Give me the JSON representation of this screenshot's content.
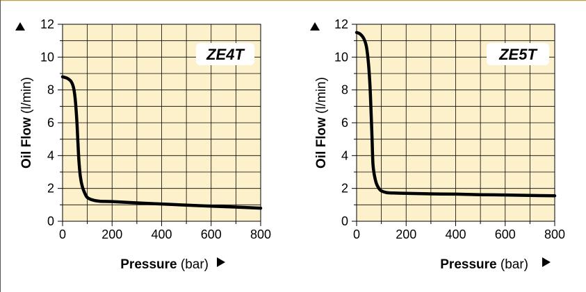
{
  "charts": [
    {
      "badge": "ZE4T",
      "ylabel_bold": "Oil Flow",
      "ylabel_unit": " (l/min)",
      "xlabel_bold": "Pressure",
      "xlabel_unit": " (bar)",
      "yticks": [
        "0",
        "2",
        "4",
        "6",
        "8",
        "10",
        "12"
      ],
      "xticks": [
        "0",
        "200",
        "400",
        "600",
        "800"
      ]
    },
    {
      "badge": "ZE5T",
      "ylabel_bold": "Oil Flow",
      "ylabel_unit": " (l/min)",
      "xlabel_bold": "Pressure",
      "xlabel_unit": " (bar)",
      "yticks": [
        "0",
        "2",
        "4",
        "6",
        "8",
        "10",
        "12"
      ],
      "xticks": [
        "0",
        "200",
        "400",
        "600",
        "800"
      ]
    }
  ],
  "chart_data": [
    {
      "type": "line",
      "title": "ZE4T",
      "xlabel": "Pressure (bar)",
      "ylabel": "Oil Flow (l/min)",
      "xlim": [
        0,
        800
      ],
      "ylim": [
        0,
        12
      ],
      "grid": true,
      "series": [
        {
          "x": [
            0,
            20,
            35,
            45,
            52,
            58,
            62,
            66,
            72,
            80,
            90,
            100,
            120,
            150,
            200,
            300,
            400,
            500,
            600,
            700,
            800
          ],
          "y": [
            8.8,
            8.7,
            8.5,
            8.1,
            7.3,
            6.0,
            4.8,
            3.7,
            2.7,
            2.1,
            1.7,
            1.45,
            1.3,
            1.22,
            1.2,
            1.12,
            1.05,
            0.98,
            0.92,
            0.86,
            0.8
          ]
        }
      ]
    },
    {
      "type": "line",
      "title": "ZE5T",
      "xlabel": "Pressure (bar)",
      "ylabel": "Oil Flow (l/min)",
      "xlim": [
        0,
        800
      ],
      "ylim": [
        0,
        12
      ],
      "grid": true,
      "series": [
        {
          "x": [
            0,
            15,
            30,
            40,
            48,
            54,
            58,
            62,
            66,
            72,
            80,
            90,
            100,
            120,
            150,
            200,
            300,
            400,
            500,
            600,
            700,
            800
          ],
          "y": [
            11.5,
            11.4,
            11.1,
            10.6,
            9.6,
            8.3,
            6.8,
            5.2,
            3.5,
            2.8,
            2.3,
            2.0,
            1.85,
            1.75,
            1.72,
            1.7,
            1.67,
            1.65,
            1.62,
            1.6,
            1.57,
            1.55
          ]
        }
      ]
    }
  ]
}
